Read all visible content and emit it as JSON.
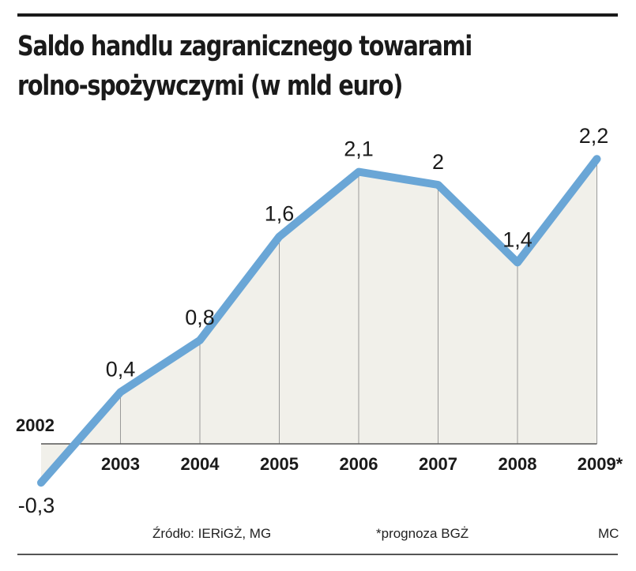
{
  "chart_data": {
    "type": "area",
    "title": "Saldo handlu zagranicznego towarami rolno-spożywczymi (w mld euro)",
    "title_lines": [
      "Saldo handlu zagranicznego towarami",
      "rolno-spożywczymi (w mld euro)"
    ],
    "categories": [
      "2002",
      "2003",
      "2004",
      "2005",
      "2006",
      "2007",
      "2008",
      "2009*"
    ],
    "values": [
      -0.3,
      0.4,
      0.8,
      1.6,
      2.1,
      2.0,
      1.4,
      2.2
    ],
    "value_labels": [
      "-0,3",
      "0,4",
      "0,8",
      "1,6",
      "2,1",
      "2",
      "1,4",
      "2,2"
    ],
    "ylim": [
      -0.3,
      2.2
    ],
    "xlabel": "",
    "ylabel": "",
    "grid": false,
    "line_color": "#6aa6d6",
    "fill_color": "#f1f0ea"
  },
  "footer": {
    "source": "Źródło: IERiGŻ, MG",
    "note": "*prognoza BGŻ",
    "credit": "MC"
  }
}
